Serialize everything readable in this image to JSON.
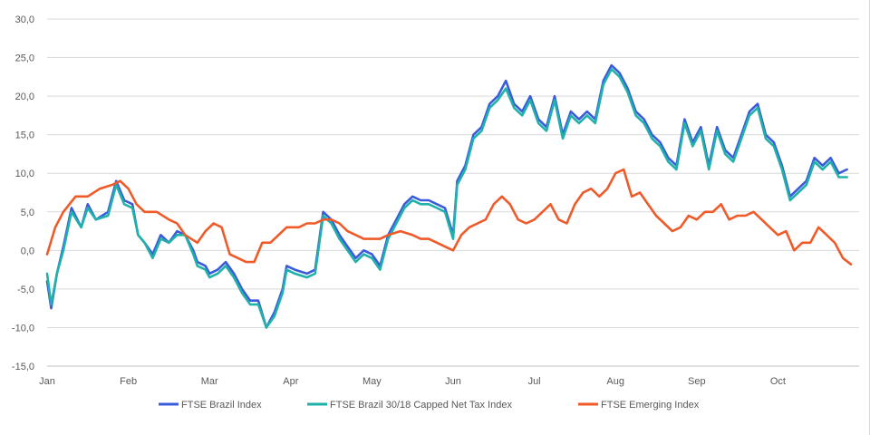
{
  "chart_data": {
    "type": "line",
    "title": "",
    "xlabel": "",
    "ylabel": "",
    "ylim": [
      -15,
      30
    ],
    "y_ticks": [
      "30,0",
      "25,0",
      "20,0",
      "15,0",
      "10,0",
      "5,0",
      "0,0",
      "-5,0",
      "-10,0",
      "-15,0"
    ],
    "y_tick_values": [
      30,
      25,
      20,
      15,
      10,
      5,
      0,
      -5,
      -10,
      -15
    ],
    "x_range": [
      0,
      10
    ],
    "month_labels": [
      "Jan",
      "Feb",
      "Mar",
      "Apr",
      "May",
      "Jun",
      "Jul",
      "Aug",
      "Sep",
      "Oct"
    ],
    "month_positions": [
      0,
      1,
      2,
      3,
      4,
      5,
      6,
      7,
      8,
      9
    ],
    "grid": true,
    "legend_position": "bottom",
    "series": [
      {
        "name": "FTSE Brazil Index",
        "color": "#3b5bdb",
        "points": [
          [
            0,
            -4
          ],
          [
            0.05,
            -7.5
          ],
          [
            0.12,
            -3
          ],
          [
            0.2,
            0.5
          ],
          [
            0.3,
            5.5
          ],
          [
            0.42,
            3
          ],
          [
            0.5,
            6
          ],
          [
            0.6,
            4
          ],
          [
            0.75,
            5
          ],
          [
            0.85,
            9
          ],
          [
            0.95,
            6.5
          ],
          [
            1.05,
            6
          ],
          [
            1.12,
            2
          ],
          [
            1.2,
            1
          ],
          [
            1.3,
            -0.5
          ],
          [
            1.4,
            2
          ],
          [
            1.5,
            1
          ],
          [
            1.6,
            2.5
          ],
          [
            1.7,
            2
          ],
          [
            1.8,
            0
          ],
          [
            1.85,
            -1.5
          ],
          [
            1.95,
            -2
          ],
          [
            2.0,
            -3
          ],
          [
            2.1,
            -2.5
          ],
          [
            2.2,
            -1.5
          ],
          [
            2.3,
            -3
          ],
          [
            2.4,
            -5
          ],
          [
            2.5,
            -6.5
          ],
          [
            2.6,
            -6.5
          ],
          [
            2.7,
            -10
          ],
          [
            2.8,
            -8
          ],
          [
            2.9,
            -5
          ],
          [
            2.95,
            -2
          ],
          [
            3.05,
            -2.5
          ],
          [
            3.2,
            -3
          ],
          [
            3.3,
            -2.5
          ],
          [
            3.4,
            5
          ],
          [
            3.5,
            4
          ],
          [
            3.6,
            2
          ],
          [
            3.7,
            0.5
          ],
          [
            3.8,
            -1
          ],
          [
            3.9,
            0
          ],
          [
            4.0,
            -0.5
          ],
          [
            4.1,
            -2
          ],
          [
            4.2,
            2
          ],
          [
            4.3,
            4
          ],
          [
            4.4,
            6
          ],
          [
            4.5,
            7
          ],
          [
            4.6,
            6.5
          ],
          [
            4.7,
            6.5
          ],
          [
            4.8,
            6
          ],
          [
            4.9,
            5.5
          ],
          [
            5.0,
            2
          ],
          [
            5.05,
            9
          ],
          [
            5.15,
            11
          ],
          [
            5.25,
            15
          ],
          [
            5.35,
            16
          ],
          [
            5.45,
            19
          ],
          [
            5.55,
            20
          ],
          [
            5.65,
            22
          ],
          [
            5.75,
            19
          ],
          [
            5.85,
            18
          ],
          [
            5.95,
            20
          ],
          [
            6.05,
            17
          ],
          [
            6.15,
            16
          ],
          [
            6.25,
            20
          ],
          [
            6.35,
            15
          ],
          [
            6.45,
            18
          ],
          [
            6.55,
            17
          ],
          [
            6.65,
            18
          ],
          [
            6.75,
            17
          ],
          [
            6.85,
            22
          ],
          [
            6.95,
            24
          ],
          [
            7.05,
            23
          ],
          [
            7.15,
            21
          ],
          [
            7.25,
            18
          ],
          [
            7.35,
            17
          ],
          [
            7.45,
            15
          ],
          [
            7.55,
            14
          ],
          [
            7.65,
            12
          ],
          [
            7.75,
            11
          ],
          [
            7.85,
            17
          ],
          [
            7.95,
            14
          ],
          [
            8.05,
            16
          ],
          [
            8.15,
            11
          ],
          [
            8.25,
            16
          ],
          [
            8.35,
            13
          ],
          [
            8.45,
            12
          ],
          [
            8.55,
            15
          ],
          [
            8.65,
            18
          ],
          [
            8.75,
            19
          ],
          [
            8.85,
            15
          ],
          [
            8.95,
            14
          ],
          [
            9.05,
            11
          ],
          [
            9.15,
            7
          ],
          [
            9.25,
            8
          ],
          [
            9.35,
            9
          ],
          [
            9.45,
            12
          ],
          [
            9.55,
            11
          ],
          [
            9.65,
            12
          ],
          [
            9.75,
            10
          ],
          [
            9.85,
            10.5
          ]
        ]
      },
      {
        "name": "FTSE Brazil 30/18 Capped Net Tax Index",
        "color": "#20b2aa",
        "points": [
          [
            0,
            -3
          ],
          [
            0.05,
            -7
          ],
          [
            0.12,
            -3
          ],
          [
            0.2,
            0
          ],
          [
            0.3,
            5
          ],
          [
            0.42,
            3
          ],
          [
            0.5,
            5.5
          ],
          [
            0.6,
            4
          ],
          [
            0.75,
            4.5
          ],
          [
            0.85,
            8.5
          ],
          [
            0.95,
            6
          ],
          [
            1.05,
            5.5
          ],
          [
            1.12,
            2
          ],
          [
            1.2,
            1
          ],
          [
            1.3,
            -1
          ],
          [
            1.4,
            1.5
          ],
          [
            1.5,
            1
          ],
          [
            1.6,
            2
          ],
          [
            1.7,
            2
          ],
          [
            1.8,
            -0.5
          ],
          [
            1.85,
            -2
          ],
          [
            1.95,
            -2.5
          ],
          [
            2.0,
            -3.5
          ],
          [
            2.1,
            -3
          ],
          [
            2.2,
            -2
          ],
          [
            2.3,
            -3.5
          ],
          [
            2.4,
            -5.5
          ],
          [
            2.5,
            -7
          ],
          [
            2.6,
            -7
          ],
          [
            2.7,
            -10
          ],
          [
            2.8,
            -8.5
          ],
          [
            2.9,
            -5.5
          ],
          [
            2.95,
            -2.5
          ],
          [
            3.05,
            -3
          ],
          [
            3.2,
            -3.5
          ],
          [
            3.3,
            -3
          ],
          [
            3.4,
            4.5
          ],
          [
            3.5,
            3.5
          ],
          [
            3.6,
            1.5
          ],
          [
            3.7,
            0
          ],
          [
            3.8,
            -1.5
          ],
          [
            3.9,
            -0.5
          ],
          [
            4.0,
            -1
          ],
          [
            4.1,
            -2.5
          ],
          [
            4.2,
            1.5
          ],
          [
            4.3,
            3.5
          ],
          [
            4.4,
            5.5
          ],
          [
            4.5,
            6.5
          ],
          [
            4.6,
            6
          ],
          [
            4.7,
            6
          ],
          [
            4.8,
            5.5
          ],
          [
            4.9,
            5
          ],
          [
            5.0,
            1.5
          ],
          [
            5.05,
            8.5
          ],
          [
            5.15,
            10.5
          ],
          [
            5.25,
            14.5
          ],
          [
            5.35,
            15.5
          ],
          [
            5.45,
            18.5
          ],
          [
            5.55,
            19.5
          ],
          [
            5.65,
            21
          ],
          [
            5.75,
            18.5
          ],
          [
            5.85,
            17.5
          ],
          [
            5.95,
            19.5
          ],
          [
            6.05,
            16.5
          ],
          [
            6.15,
            15.5
          ],
          [
            6.25,
            19.5
          ],
          [
            6.35,
            14.5
          ],
          [
            6.45,
            17.5
          ],
          [
            6.55,
            16.5
          ],
          [
            6.65,
            17.5
          ],
          [
            6.75,
            16.5
          ],
          [
            6.85,
            21.5
          ],
          [
            6.95,
            23.5
          ],
          [
            7.05,
            22.5
          ],
          [
            7.15,
            20.5
          ],
          [
            7.25,
            17.5
          ],
          [
            7.35,
            16.5
          ],
          [
            7.45,
            14.5
          ],
          [
            7.55,
            13.5
          ],
          [
            7.65,
            11.5
          ],
          [
            7.75,
            10.5
          ],
          [
            7.85,
            16.5
          ],
          [
            7.95,
            13.5
          ],
          [
            8.05,
            15.5
          ],
          [
            8.15,
            10.5
          ],
          [
            8.25,
            15.5
          ],
          [
            8.35,
            12.5
          ],
          [
            8.45,
            11.5
          ],
          [
            8.55,
            14.5
          ],
          [
            8.65,
            17.5
          ],
          [
            8.75,
            18.5
          ],
          [
            8.85,
            14.5
          ],
          [
            8.95,
            13.5
          ],
          [
            9.05,
            10.5
          ],
          [
            9.15,
            6.5
          ],
          [
            9.25,
            7.5
          ],
          [
            9.35,
            8.5
          ],
          [
            9.45,
            11.5
          ],
          [
            9.55,
            10.5
          ],
          [
            9.65,
            11.5
          ],
          [
            9.75,
            9.5
          ],
          [
            9.85,
            9.5
          ]
        ]
      },
      {
        "name": "FTSE Emerging Index",
        "color": "#f05a28",
        "points": [
          [
            0,
            -0.5
          ],
          [
            0.1,
            3
          ],
          [
            0.2,
            5
          ],
          [
            0.35,
            7
          ],
          [
            0.5,
            7
          ],
          [
            0.65,
            8
          ],
          [
            0.8,
            8.5
          ],
          [
            0.9,
            9
          ],
          [
            1.0,
            8
          ],
          [
            1.1,
            6
          ],
          [
            1.2,
            5
          ],
          [
            1.35,
            5
          ],
          [
            1.5,
            4
          ],
          [
            1.6,
            3.5
          ],
          [
            1.7,
            2
          ],
          [
            1.85,
            1
          ],
          [
            1.95,
            2.5
          ],
          [
            2.05,
            3.5
          ],
          [
            2.15,
            3
          ],
          [
            2.25,
            -0.5
          ],
          [
            2.35,
            -1
          ],
          [
            2.45,
            -1.5
          ],
          [
            2.55,
            -1.5
          ],
          [
            2.65,
            1
          ],
          [
            2.75,
            1
          ],
          [
            2.85,
            2
          ],
          [
            2.95,
            3
          ],
          [
            3.1,
            3
          ],
          [
            3.2,
            3.5
          ],
          [
            3.3,
            3.5
          ],
          [
            3.4,
            4
          ],
          [
            3.5,
            4
          ],
          [
            3.6,
            3.5
          ],
          [
            3.7,
            2.5
          ],
          [
            3.8,
            2
          ],
          [
            3.9,
            1.5
          ],
          [
            4.0,
            1.5
          ],
          [
            4.1,
            1.5
          ],
          [
            4.2,
            2
          ],
          [
            4.35,
            2.5
          ],
          [
            4.5,
            2
          ],
          [
            4.6,
            1.5
          ],
          [
            4.7,
            1.5
          ],
          [
            4.8,
            1
          ],
          [
            4.9,
            0.5
          ],
          [
            5.0,
            0
          ],
          [
            5.1,
            2
          ],
          [
            5.2,
            3
          ],
          [
            5.3,
            3.5
          ],
          [
            5.4,
            4
          ],
          [
            5.5,
            6
          ],
          [
            5.6,
            7
          ],
          [
            5.7,
            6
          ],
          [
            5.8,
            4
          ],
          [
            5.9,
            3.5
          ],
          [
            6.0,
            4
          ],
          [
            6.1,
            5
          ],
          [
            6.2,
            6
          ],
          [
            6.3,
            4
          ],
          [
            6.4,
            3.5
          ],
          [
            6.5,
            6
          ],
          [
            6.6,
            7.5
          ],
          [
            6.7,
            8
          ],
          [
            6.8,
            7
          ],
          [
            6.9,
            8
          ],
          [
            7.0,
            10
          ],
          [
            7.1,
            10.5
          ],
          [
            7.2,
            7
          ],
          [
            7.3,
            7.5
          ],
          [
            7.4,
            6
          ],
          [
            7.5,
            4.5
          ],
          [
            7.6,
            3.5
          ],
          [
            7.7,
            2.5
          ],
          [
            7.8,
            3
          ],
          [
            7.9,
            4.5
          ],
          [
            8.0,
            4
          ],
          [
            8.1,
            5
          ],
          [
            8.2,
            5
          ],
          [
            8.3,
            6
          ],
          [
            8.4,
            4
          ],
          [
            8.5,
            4.5
          ],
          [
            8.6,
            4.5
          ],
          [
            8.7,
            5
          ],
          [
            8.8,
            4
          ],
          [
            8.9,
            3
          ],
          [
            9.0,
            2
          ],
          [
            9.1,
            2.5
          ],
          [
            9.2,
            0
          ],
          [
            9.3,
            1
          ],
          [
            9.4,
            1
          ],
          [
            9.5,
            3
          ],
          [
            9.6,
            2
          ],
          [
            9.7,
            1
          ],
          [
            9.8,
            -1
          ],
          [
            9.9,
            -1.8
          ]
        ]
      }
    ]
  }
}
